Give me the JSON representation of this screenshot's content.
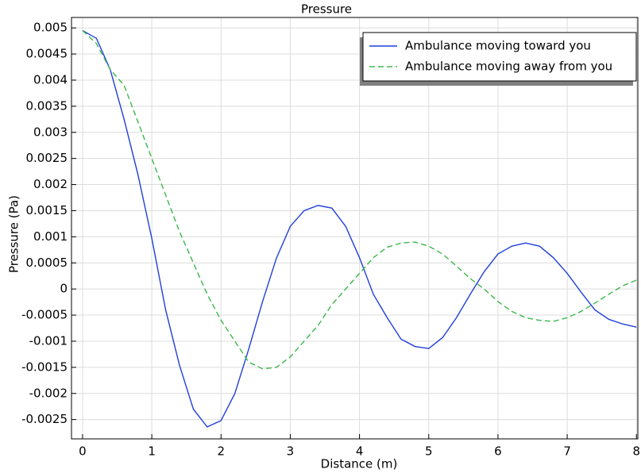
{
  "chart_data": {
    "type": "line",
    "title": "Pressure",
    "x_label": "Distance (m)",
    "y_label": "Pressure (Pa)",
    "x": [
      0,
      0.2,
      0.4,
      0.6,
      0.8,
      1.0,
      1.2,
      1.4,
      1.6,
      1.8,
      2.0,
      2.2,
      2.4,
      2.6,
      2.8,
      3.0,
      3.2,
      3.4,
      3.6,
      3.8,
      4.0,
      4.2,
      4.4,
      4.6,
      4.8,
      5.0,
      5.2,
      5.4,
      5.6,
      5.8,
      6.0,
      6.2,
      6.4,
      6.6,
      6.8,
      7.0,
      7.2,
      7.4,
      7.6,
      7.8,
      8.0
    ],
    "series": [
      {
        "name": "Ambulance moving toward you",
        "color": "#1f3fdb",
        "dash": false,
        "values": [
          0.00495,
          0.0048,
          0.0042,
          0.00325,
          0.00219,
          0.00097,
          -0.0004,
          -0.00146,
          -0.0023,
          -0.00264,
          -0.00252,
          -0.002,
          -0.00115,
          -0.00024,
          0.00059,
          0.0012,
          0.0015,
          0.0016,
          0.00155,
          0.0012,
          0.0006,
          -0.0001,
          -0.00055,
          -0.00096,
          -0.0011,
          -0.00114,
          -0.00093,
          -0.00055,
          -0.0001,
          0.00033,
          0.00067,
          0.00082,
          0.00088,
          0.00082,
          0.0006,
          0.0003,
          -6e-05,
          -0.0004,
          -0.00058,
          -0.00067,
          -0.00073
        ]
      },
      {
        "name": "Ambulance moving away from you",
        "color": "#3cb84a",
        "dash": true,
        "values": [
          0.00495,
          0.0047,
          0.0042,
          0.0039,
          0.0032,
          0.0025,
          0.0018,
          0.0011,
          0.0005,
          -0.0001,
          -0.0006,
          -0.001,
          -0.0014,
          -0.00153,
          -0.0015,
          -0.0013,
          -0.001,
          -0.0007,
          -0.0003,
          0,
          0.0003,
          0.0006,
          0.0008,
          0.00088,
          0.0009,
          0.00082,
          0.00067,
          0.00044,
          0.0002,
          0,
          -0.00024,
          -0.00043,
          -0.00055,
          -0.0006,
          -0.00062,
          -0.00055,
          -0.00043,
          -0.00027,
          -0.0001,
          6e-05,
          0.00017
        ]
      }
    ],
    "xlim": [
      -0.16,
      8.02
    ],
    "ylim": [
      -0.00287,
      0.0052
    ],
    "xticks": [
      0,
      1,
      2,
      3,
      4,
      5,
      6,
      7,
      8
    ],
    "yticks": [
      0.005,
      0.0045,
      0.004,
      0.0035,
      0.003,
      0.0025,
      0.002,
      0.0015,
      0.001,
      0.0005,
      0,
      -0.0005,
      -0.001,
      -0.0015,
      -0.002,
      -0.0025
    ],
    "grid": true,
    "legend": "upper right"
  }
}
